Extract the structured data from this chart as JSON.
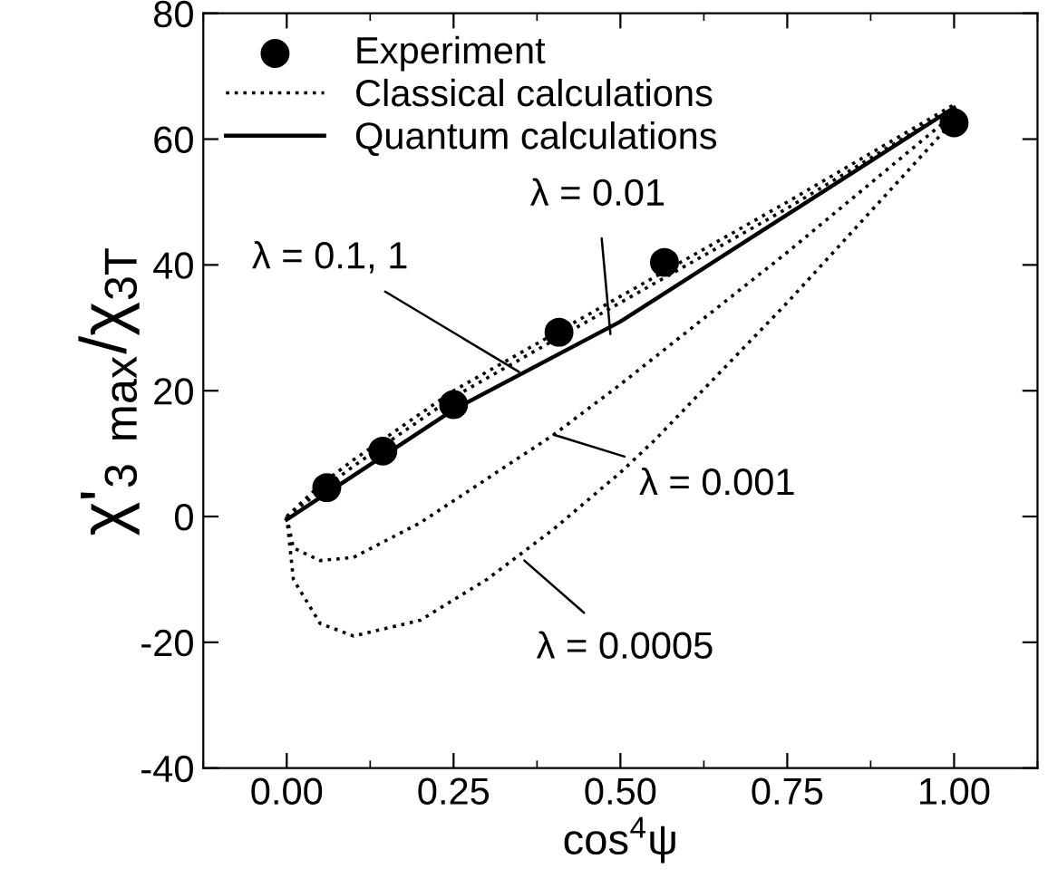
{
  "chart_data": {
    "type": "line",
    "xlabel": "cos$^{4}$ψ",
    "ylabel": "χ'$_{3 max}$/χ$_{3T}$",
    "xlim": [
      -0.125,
      1.125
    ],
    "ylim": [
      -40,
      80
    ],
    "xticks": [
      {
        "value": 0,
        "label": "0.00"
      },
      {
        "value": 0.25,
        "label": "0.25"
      },
      {
        "value": 0.5,
        "label": "0.50"
      },
      {
        "value": 0.75,
        "label": "0.75"
      },
      {
        "value": 1,
        "label": "1.00"
      }
    ],
    "yticks": [
      -40,
      -20,
      0,
      20,
      40,
      60,
      80
    ],
    "grid": false,
    "legend": "top left",
    "series": [
      {
        "name": "Experiment",
        "type": "scatter",
        "marker": "circle",
        "color": "#000000",
        "x": [
          0.06,
          0.144,
          0.25,
          0.408,
          0.566,
          1.0
        ],
        "values": [
          4.6,
          10.4,
          17.8,
          29.3,
          40.4,
          62.6
        ]
      },
      {
        "name": "Classical calculations",
        "line_style": "dotted",
        "color": "#000000",
        "x": [
          0,
          0.05,
          0.1,
          0.25,
          0.5,
          0.75,
          1
        ],
        "values": [
          0,
          4,
          8,
          19,
          34,
          49,
          65
        ]
      },
      {
        "name": "Quantum calculations",
        "line_style": "solid",
        "color": "#000000",
        "x": [
          0,
          0.05,
          0.1,
          0.25,
          0.5,
          0.75,
          1
        ],
        "values": [
          -0.5,
          3,
          6.5,
          17,
          31,
          48,
          65
        ]
      },
      {
        "line_style": "dotted",
        "color": "#000000",
        "x": [
          0,
          0.05,
          0.1,
          0.25,
          0.5,
          0.75,
          1
        ],
        "values": [
          0,
          5,
          9,
          20,
          35,
          50,
          65.5
        ]
      },
      {
        "line_style": "dotted",
        "color": "#000000",
        "x": [
          0,
          0.01,
          0.05,
          0.1,
          0.2,
          0.3,
          0.4,
          0.5,
          0.75,
          1
        ],
        "values": [
          0,
          -5,
          -7,
          -6.5,
          -1,
          6,
          13,
          21,
          42,
          64
        ]
      },
      {
        "line_style": "dotted",
        "color": "#000000",
        "x": [
          0,
          0.01,
          0.05,
          0.1,
          0.2,
          0.3,
          0.4,
          0.5,
          0.55,
          0.75,
          1
        ],
        "values": [
          0,
          -10,
          -17,
          -19,
          -16.5,
          -10,
          -2,
          7,
          12,
          34,
          63
        ]
      }
    ],
    "annotations": [
      {
        "text": "λ = 0.1, 1",
        "x": 0.348,
        "y": 23
      },
      {
        "text": "λ = 0.01",
        "x": 0.485,
        "y": 29
      },
      {
        "text": "λ = 0.001",
        "x": 0.4,
        "y": 13
      },
      {
        "text": "λ = 0.0005",
        "x": 0.356,
        "y": -7
      }
    ]
  }
}
